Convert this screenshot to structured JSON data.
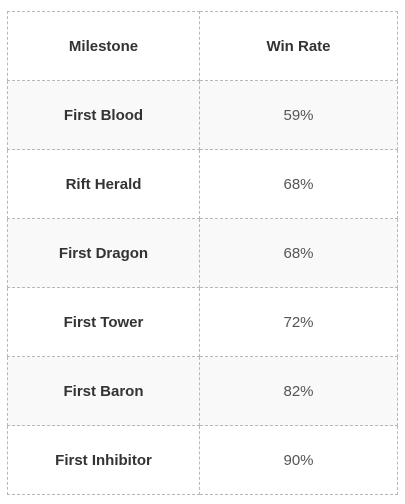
{
  "table": {
    "headers": [
      "Milestone",
      "Win Rate"
    ],
    "rows": [
      {
        "milestone": "First Blood",
        "win_rate": "59%"
      },
      {
        "milestone": "Rift Herald",
        "win_rate": "68%"
      },
      {
        "milestone": "First Dragon",
        "win_rate": "68%"
      },
      {
        "milestone": "First Tower",
        "win_rate": "72%"
      },
      {
        "milestone": "First Baron",
        "win_rate": "82%"
      },
      {
        "milestone": "First Inhibitor",
        "win_rate": "90%"
      }
    ]
  }
}
